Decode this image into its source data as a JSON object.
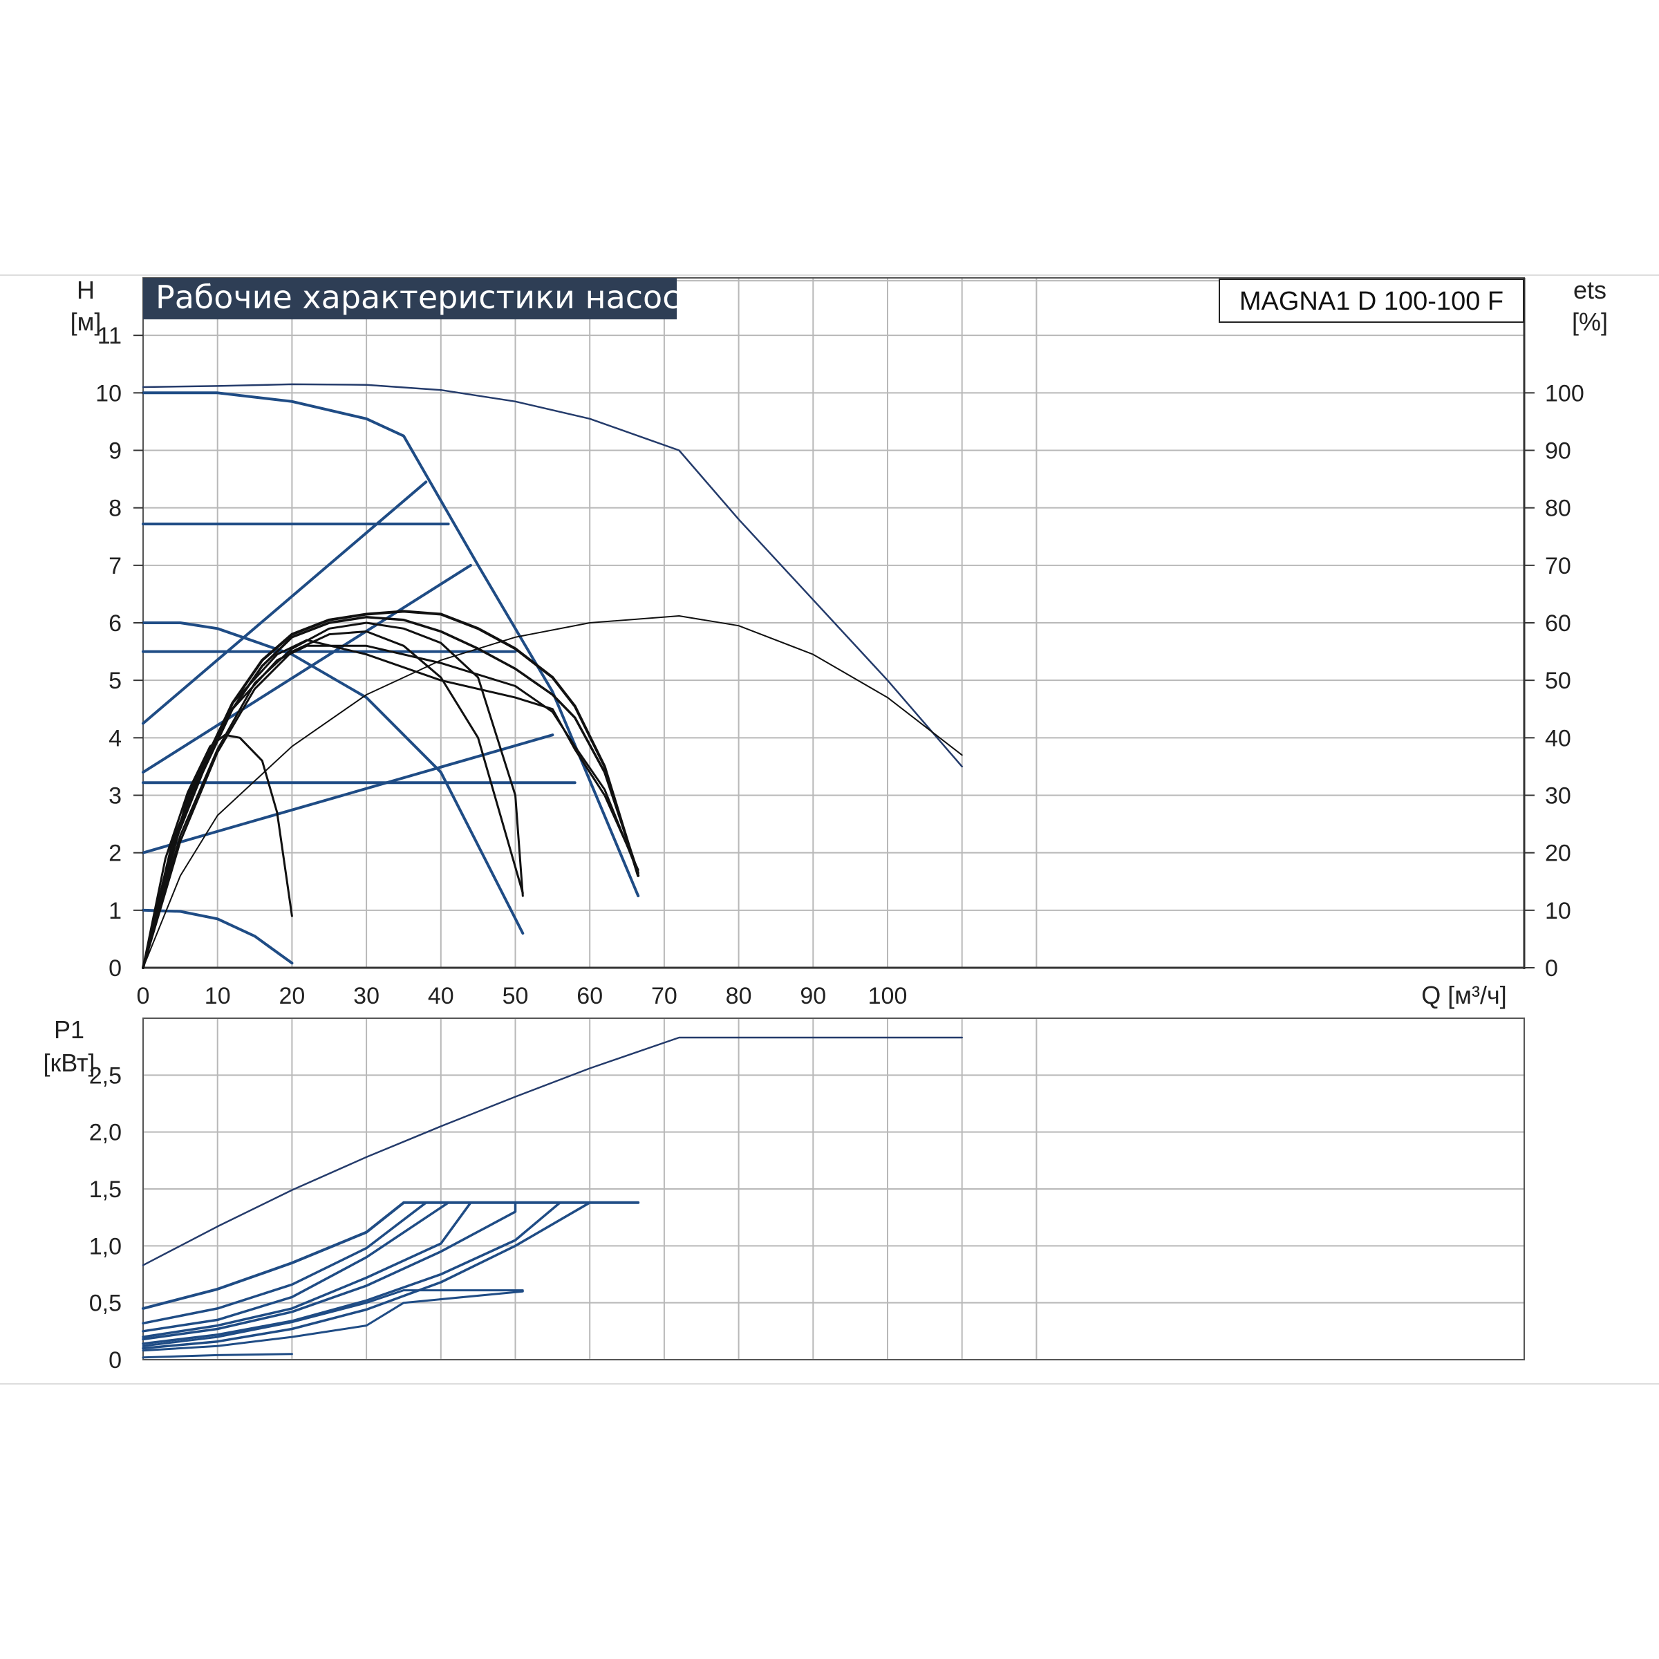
{
  "chart_data": [
    {
      "type": "line",
      "title": "Рабочие характеристики насоса",
      "model": "MAGNA1 D 100-100 F",
      "ylabel": "H",
      "yunit": "[м]",
      "y2label": "ets",
      "y2unit": "[%]",
      "xlabel": "Q [м³/ч]",
      "xlim": [
        0,
        120
      ],
      "ylim": [
        0,
        12
      ],
      "y2lim": [
        0,
        120
      ],
      "xticks": [
        "0",
        "10",
        "20",
        "30",
        "40",
        "50",
        "60",
        "70",
        "80",
        "90",
        "100"
      ],
      "yticks": [
        "0",
        "1",
        "2",
        "3",
        "4",
        "5",
        "6",
        "7",
        "8",
        "9",
        "10",
        "11"
      ],
      "y2ticks": [
        "0",
        "10",
        "20",
        "30",
        "40",
        "50",
        "60",
        "70",
        "80",
        "90",
        "100"
      ],
      "grid": true,
      "series": [
        {
          "color": "#243b6b",
          "width": 2.5,
          "points": [
            [
              0,
              10.1
            ],
            [
              10,
              10.12
            ],
            [
              20,
              10.15
            ],
            [
              30,
              10.14
            ],
            [
              40,
              10.05
            ],
            [
              50,
              9.85
            ],
            [
              60,
              9.55
            ],
            [
              72,
              9.0
            ],
            [
              80,
              7.8
            ],
            [
              90,
              6.4
            ],
            [
              100,
              5.0
            ],
            [
              110,
              3.5
            ]
          ]
        },
        {
          "color": "#1f4c85",
          "width": 4,
          "points": [
            [
              0,
              10.0
            ],
            [
              10,
              10.0
            ],
            [
              20,
              9.85
            ],
            [
              30,
              9.55
            ],
            [
              35,
              9.25
            ],
            [
              45,
              7.0
            ],
            [
              55,
              4.8
            ],
            [
              66.5,
              1.25
            ]
          ]
        },
        {
          "color": "#1f4c85",
          "width": 4,
          "points": [
            [
              0,
              6.0
            ],
            [
              5,
              6.0
            ],
            [
              10,
              5.9
            ],
            [
              20,
              5.45
            ],
            [
              30,
              4.7
            ],
            [
              40,
              3.4
            ],
            [
              51,
              0.6
            ]
          ]
        },
        {
          "color": "#1f4c85",
          "width": 4,
          "points": [
            [
              0,
              1.0
            ],
            [
              5,
              0.98
            ],
            [
              10,
              0.85
            ],
            [
              15,
              0.55
            ],
            [
              20,
              0.08
            ]
          ]
        },
        {
          "color": "#1f4c85",
          "width": 4,
          "points": [
            [
              0,
              7.72
            ],
            [
              41,
              7.72
            ]
          ]
        },
        {
          "color": "#1f4c85",
          "width": 4,
          "points": [
            [
              0,
              5.5
            ],
            [
              50,
              5.5
            ]
          ]
        },
        {
          "color": "#1f4c85",
          "width": 4,
          "points": [
            [
              0,
              3.22
            ],
            [
              58,
              3.22
            ]
          ]
        },
        {
          "color": "#1f4c85",
          "width": 4,
          "points": [
            [
              0,
              4.25
            ],
            [
              38,
              8.45
            ]
          ]
        },
        {
          "color": "#1f4c85",
          "width": 4,
          "points": [
            [
              0,
              3.4
            ],
            [
              44,
              7.0
            ]
          ]
        },
        {
          "color": "#1f4c85",
          "width": 4,
          "points": [
            [
              0,
              2.0
            ],
            [
              55,
              4.05
            ]
          ]
        },
        {
          "color": "#111111",
          "width": 2,
          "points": [
            [
              0,
              0
            ],
            [
              5,
              1.6
            ],
            [
              10,
              2.65
            ],
            [
              20,
              3.85
            ],
            [
              30,
              4.75
            ],
            [
              40,
              5.35
            ],
            [
              50,
              5.75
            ],
            [
              60,
              6.0
            ],
            [
              72,
              6.12
            ],
            [
              80,
              5.95
            ],
            [
              90,
              5.45
            ],
            [
              100,
              4.7
            ],
            [
              110,
              3.7
            ]
          ]
        },
        {
          "color": "#111111",
          "width": 4,
          "points": [
            [
              0,
              0
            ],
            [
              4,
              2.2
            ],
            [
              8,
              3.5
            ],
            [
              12,
              4.6
            ],
            [
              16,
              5.35
            ],
            [
              20,
              5.8
            ],
            [
              25,
              6.05
            ],
            [
              30,
              6.15
            ],
            [
              35,
              6.2
            ],
            [
              40,
              6.15
            ],
            [
              45,
              5.9
            ],
            [
              50,
              5.55
            ],
            [
              55,
              5.05
            ],
            [
              58,
              4.55
            ],
            [
              62,
              3.5
            ],
            [
              66.5,
              1.6
            ]
          ]
        },
        {
          "color": "#111111",
          "width": 3.5,
          "points": [
            [
              0,
              0
            ],
            [
              4,
              2.1
            ],
            [
              8,
              3.4
            ],
            [
              12,
              4.5
            ],
            [
              16,
              5.25
            ],
            [
              20,
              5.75
            ],
            [
              25,
              6.0
            ],
            [
              30,
              6.1
            ],
            [
              35,
              6.05
            ],
            [
              40,
              5.85
            ],
            [
              45,
              5.55
            ],
            [
              50,
              5.2
            ],
            [
              55,
              4.75
            ],
            [
              58,
              4.35
            ],
            [
              62,
              3.4
            ],
            [
              66.5,
              1.65
            ]
          ]
        },
        {
          "color": "#111111",
          "width": 3,
          "points": [
            [
              0,
              0
            ],
            [
              5,
              2.3
            ],
            [
              10,
              3.8
            ],
            [
              15,
              4.95
            ],
            [
              20,
              5.55
            ],
            [
              25,
              5.9
            ],
            [
              30,
              6.0
            ],
            [
              35,
              5.9
            ],
            [
              40,
              5.65
            ],
            [
              45,
              5.05
            ],
            [
              50,
              3.0
            ],
            [
              51,
              1.25
            ]
          ]
        },
        {
          "color": "#111111",
          "width": 3,
          "points": [
            [
              0,
              0
            ],
            [
              5,
              2.2
            ],
            [
              10,
              3.75
            ],
            [
              15,
              4.85
            ],
            [
              20,
              5.5
            ],
            [
              25,
              5.8
            ],
            [
              30,
              5.85
            ],
            [
              35,
              5.6
            ],
            [
              40,
              5.05
            ],
            [
              45,
              4.0
            ],
            [
              51,
              1.3
            ]
          ]
        },
        {
          "color": "#111111",
          "width": 3,
          "points": [
            [
              0,
              0
            ],
            [
              3,
              1.9
            ],
            [
              6,
              3.05
            ],
            [
              9,
              3.85
            ],
            [
              11,
              4.05
            ],
            [
              13,
              4.0
            ],
            [
              16,
              3.6
            ],
            [
              18,
              2.7
            ],
            [
              20,
              0.9
            ]
          ]
        },
        {
          "color": "#111111",
          "width": 3,
          "points": [
            [
              0,
              0
            ],
            [
              6,
              3.0
            ],
            [
              12,
              4.6
            ],
            [
              18,
              5.45
            ],
            [
              22,
              5.7
            ],
            [
              30,
              5.45
            ],
            [
              40,
              5.0
            ],
            [
              50,
              4.7
            ],
            [
              55,
              4.5
            ],
            [
              58,
              3.8
            ],
            [
              62,
              3.0
            ],
            [
              66.5,
              1.7
            ]
          ]
        },
        {
          "color": "#111111",
          "width": 3,
          "points": [
            [
              0,
              0
            ],
            [
              6,
              2.95
            ],
            [
              12,
              4.5
            ],
            [
              18,
              5.35
            ],
            [
              22,
              5.6
            ],
            [
              30,
              5.6
            ],
            [
              40,
              5.3
            ],
            [
              50,
              4.9
            ],
            [
              55,
              4.45
            ],
            [
              58,
              3.85
            ],
            [
              62,
              3.1
            ],
            [
              66.5,
              1.65
            ]
          ]
        }
      ]
    },
    {
      "type": "line",
      "ylabel": "P1",
      "yunit": "[кВт]",
      "xlim": [
        0,
        120
      ],
      "ylim": [
        0,
        3.0
      ],
      "yticks": [
        "0",
        "0,5",
        "1,0",
        "1,5",
        "2,0",
        "2,5"
      ],
      "grid": true,
      "series": [
        {
          "color": "#243b6b",
          "width": 2.5,
          "points": [
            [
              0,
              0.83
            ],
            [
              10,
              1.17
            ],
            [
              20,
              1.49
            ],
            [
              30,
              1.78
            ],
            [
              40,
              2.05
            ],
            [
              50,
              2.31
            ],
            [
              60,
              2.56
            ],
            [
              72,
              2.83
            ],
            [
              80,
              2.83
            ],
            [
              110,
              2.83
            ]
          ]
        },
        {
          "color": "#1f4c85",
          "width": 4,
          "points": [
            [
              0,
              0.45
            ],
            [
              10,
              0.62
            ],
            [
              20,
              0.85
            ],
            [
              30,
              1.12
            ],
            [
              35,
              1.38
            ],
            [
              66.5,
              1.38
            ]
          ]
        },
        {
          "color": "#1f4c85",
          "width": 3.5,
          "points": [
            [
              0,
              0.32
            ],
            [
              10,
              0.45
            ],
            [
              20,
              0.66
            ],
            [
              30,
              0.98
            ],
            [
              38,
              1.38
            ],
            [
              66.5,
              1.38
            ]
          ]
        },
        {
          "color": "#1f4c85",
          "width": 3.5,
          "points": [
            [
              0,
              0.25
            ],
            [
              10,
              0.35
            ],
            [
              20,
              0.55
            ],
            [
              30,
              0.9
            ],
            [
              41,
              1.38
            ],
            [
              66.5,
              1.38
            ]
          ]
        },
        {
          "color": "#1f4c85",
          "width": 3.5,
          "points": [
            [
              0,
              0.2
            ],
            [
              10,
              0.3
            ],
            [
              20,
              0.45
            ],
            [
              30,
              0.72
            ],
            [
              40,
              1.02
            ],
            [
              44,
              1.38
            ],
            [
              66.5,
              1.38
            ]
          ]
        },
        {
          "color": "#1f4c85",
          "width": 3.5,
          "points": [
            [
              0,
              0.18
            ],
            [
              10,
              0.27
            ],
            [
              20,
              0.42
            ],
            [
              30,
              0.65
            ],
            [
              40,
              0.95
            ],
            [
              50,
              1.3
            ],
            [
              50,
              1.38
            ],
            [
              66.5,
              1.38
            ]
          ]
        },
        {
          "color": "#1f4c85",
          "width": 3.5,
          "points": [
            [
              0,
              0.14
            ],
            [
              10,
              0.22
            ],
            [
              20,
              0.34
            ],
            [
              30,
              0.52
            ],
            [
              40,
              0.75
            ],
            [
              50,
              1.05
            ],
            [
              56,
              1.38
            ],
            [
              66.5,
              1.38
            ]
          ]
        },
        {
          "color": "#1f4c85",
          "width": 3.5,
          "points": [
            [
              0,
              0.1
            ],
            [
              10,
              0.16
            ],
            [
              20,
              0.27
            ],
            [
              30,
              0.44
            ],
            [
              40,
              0.68
            ],
            [
              50,
              1.0
            ],
            [
              60,
              1.38
            ],
            [
              66.5,
              1.38
            ]
          ]
        },
        {
          "color": "#1f4c85",
          "width": 3,
          "points": [
            [
              0,
              0.12
            ],
            [
              10,
              0.2
            ],
            [
              20,
              0.33
            ],
            [
              30,
              0.5
            ],
            [
              35,
              0.61
            ],
            [
              51,
              0.61
            ]
          ]
        },
        {
          "color": "#1f4c85",
          "width": 3,
          "points": [
            [
              0,
              0.08
            ],
            [
              10,
              0.12
            ],
            [
              20,
              0.2
            ],
            [
              30,
              0.3
            ],
            [
              35,
              0.5
            ],
            [
              51,
              0.6
            ]
          ]
        },
        {
          "color": "#1f4c85",
          "width": 3,
          "points": [
            [
              0,
              0.02
            ],
            [
              10,
              0.04
            ],
            [
              20,
              0.05
            ]
          ]
        }
      ]
    }
  ]
}
